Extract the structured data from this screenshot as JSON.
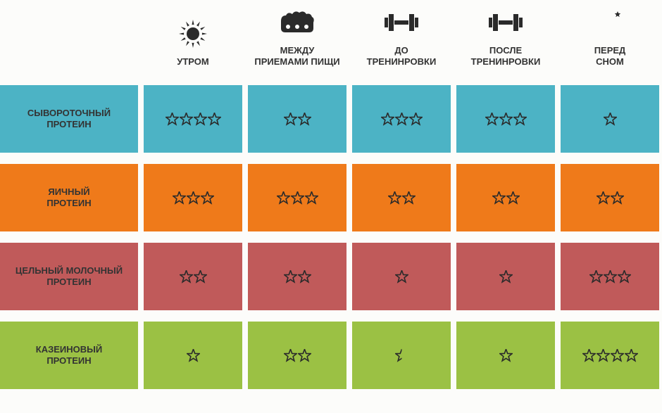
{
  "background_color": "#fcfcfa",
  "icon_color": "#2a2a2a",
  "star_stroke": "#2a2a2a",
  "columns": [
    {
      "key": "morning",
      "label": "УТРОМ",
      "icon": "sun"
    },
    {
      "key": "between",
      "label": "МЕЖДУ\nПРИЕМАМИ ПИЩИ",
      "icon": "eggs"
    },
    {
      "key": "before",
      "label": "ДО\nТРЕНИНРОВКИ",
      "icon": "dumbbell"
    },
    {
      "key": "after",
      "label": "ПОСЛЕ\nТРЕНИНРОВКИ",
      "icon": "dumbbell"
    },
    {
      "key": "bed",
      "label": "ПЕРЕД\nСНОМ",
      "icon": "moon"
    }
  ],
  "rows": [
    {
      "label": "СЫВОРОТОЧНЫЙ\nПРОТЕИН",
      "color": "#4cb3c5",
      "ratings": [
        4,
        2,
        3,
        3,
        1
      ]
    },
    {
      "label": "ЯИЧНЫЙ\nПРОТЕИН",
      "color": "#ef7a1a",
      "ratings": [
        3,
        3,
        2,
        2,
        2
      ]
    },
    {
      "label": "ЦЕЛЬНЫЙ МОЛОЧНЫЙ\nПРОТЕИН",
      "color": "#c05a5a",
      "ratings": [
        2,
        2,
        1,
        1,
        3
      ]
    },
    {
      "label": "КАЗЕИНОВЫЙ\nПРОТЕИН",
      "color": "#9bc144",
      "ratings": [
        1,
        2,
        0.5,
        1,
        4
      ]
    }
  ],
  "star_size": 19
}
